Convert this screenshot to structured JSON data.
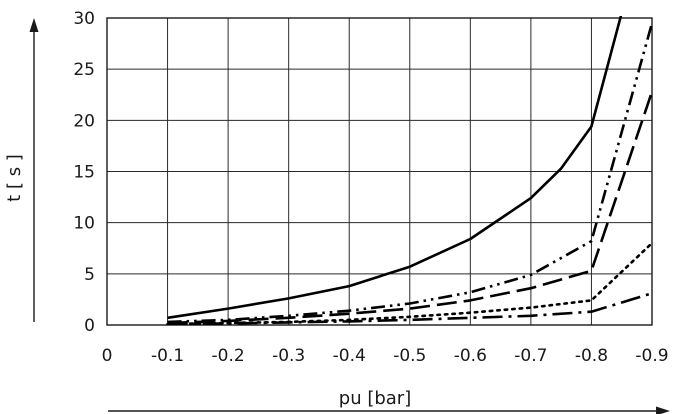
{
  "chart_data": {
    "type": "line",
    "xlabel": "pu [bar]",
    "ylabel": "t [ s ]",
    "xlim": [
      0,
      -0.9
    ],
    "ylim": [
      0,
      30
    ],
    "x_ticks": [
      "0",
      "-0.1",
      "-0.2",
      "-0.3",
      "-0.4",
      "-0.5",
      "-0.6",
      "-0.7",
      "-0.8",
      "-0.9"
    ],
    "y_ticks": [
      "0",
      "5",
      "10",
      "15",
      "20",
      "25",
      "30"
    ],
    "grid": true,
    "legend": "none",
    "series": [
      {
        "line_style": "solid",
        "x": [
          -0.1,
          -0.2,
          -0.3,
          -0.4,
          -0.5,
          -0.6,
          -0.7,
          -0.75,
          -0.8,
          -0.85
        ],
        "y": [
          0.7,
          1.6,
          2.6,
          3.8,
          5.7,
          8.4,
          12.4,
          15.3,
          19.4,
          30.5
        ]
      },
      {
        "line_style": "dash-dot-dot",
        "x": [
          -0.1,
          -0.2,
          -0.3,
          -0.4,
          -0.5,
          -0.6,
          -0.7,
          -0.8,
          -0.9
        ],
        "y": [
          0.3,
          0.5,
          0.9,
          1.4,
          2.1,
          3.2,
          4.9,
          8.2,
          29.5
        ]
      },
      {
        "line_style": "long-dash",
        "x": [
          -0.1,
          -0.2,
          -0.3,
          -0.4,
          -0.5,
          -0.6,
          -0.7,
          -0.8,
          -0.9
        ],
        "y": [
          0.2,
          0.4,
          0.7,
          1.1,
          1.6,
          2.4,
          3.6,
          5.3,
          22.8
        ]
      },
      {
        "line_style": "dotted",
        "x": [
          -0.1,
          -0.2,
          -0.3,
          -0.4,
          -0.5,
          -0.6,
          -0.7,
          -0.8,
          -0.9
        ],
        "y": [
          0.1,
          0.2,
          0.3,
          0.5,
          0.8,
          1.2,
          1.7,
          2.4,
          8.0
        ]
      },
      {
        "line_style": "long-dash-dot",
        "x": [
          -0.1,
          -0.2,
          -0.3,
          -0.4,
          -0.5,
          -0.6,
          -0.7,
          -0.8,
          -0.9
        ],
        "y": [
          0.1,
          0.15,
          0.25,
          0.35,
          0.5,
          0.7,
          0.9,
          1.3,
          3.1
        ]
      }
    ]
  }
}
